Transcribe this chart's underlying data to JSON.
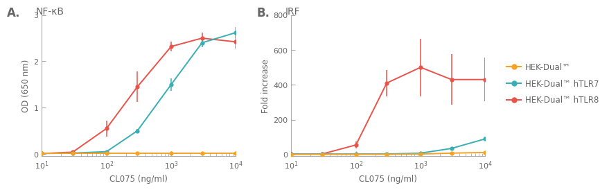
{
  "panel_A": {
    "title": "NF-κB",
    "ylabel": "OD (650 nm)",
    "xlabel": "CL075 (ng/ml)",
    "xlim": [
      10,
      10000
    ],
    "ylim": [
      -0.05,
      3.0
    ],
    "yticks": [
      0,
      1,
      2,
      3
    ],
    "series": {
      "orange": {
        "label": "HEK-Dual™",
        "color": "#F5A327",
        "x": [
          10,
          30,
          100,
          300,
          1000,
          3000,
          10000
        ],
        "y": [
          0.01,
          0.01,
          0.01,
          0.01,
          0.01,
          0.01,
          0.01
        ],
        "yerr": [
          0.005,
          0.005,
          0.005,
          0.005,
          0.005,
          0.005,
          0.005
        ]
      },
      "teal": {
        "label": "HEK-Dual™ hTLR7",
        "color": "#3AAFB3",
        "x": [
          10,
          30,
          100,
          300,
          1000,
          3000,
          10000
        ],
        "y": [
          0.01,
          0.02,
          0.05,
          0.5,
          1.5,
          2.4,
          2.62
        ],
        "yerr": [
          0.005,
          0.01,
          0.02,
          0.04,
          0.13,
          0.09,
          0.12
        ]
      },
      "red": {
        "label": "HEK-Dual™ hTLR8",
        "color": "#E8534A",
        "x": [
          10,
          30,
          100,
          300,
          1000,
          3000,
          10000
        ],
        "y": [
          0.01,
          0.04,
          0.55,
          1.45,
          2.32,
          2.5,
          2.42
        ],
        "yerr": [
          0.005,
          0.02,
          0.17,
          0.33,
          0.1,
          0.12,
          0.14
        ]
      }
    }
  },
  "panel_B": {
    "title": "IRF",
    "ylabel": "Fold increase",
    "xlabel": "CL075 (ng/ml)",
    "xlim": [
      10,
      10000
    ],
    "ylim": [
      -10,
      800
    ],
    "yticks": [
      0,
      200,
      400,
      600,
      800
    ],
    "series": {
      "orange": {
        "label": "HEK-Dual™",
        "color": "#F5A327",
        "x": [
          10,
          30,
          100,
          300,
          1000,
          3000,
          10000
        ],
        "y": [
          1,
          1,
          1,
          1,
          3,
          8,
          12
        ],
        "yerr": [
          0.5,
          0.5,
          0.5,
          0.5,
          1,
          2,
          3
        ]
      },
      "teal": {
        "label": "HEK-Dual™ hTLR7",
        "color": "#3AAFB3",
        "x": [
          10,
          30,
          100,
          300,
          1000,
          3000,
          10000
        ],
        "y": [
          3,
          3,
          3,
          3,
          8,
          35,
          90
        ],
        "yerr": [
          1,
          1,
          1,
          1,
          3,
          8,
          12
        ]
      },
      "red": {
        "label": "HEK-Dual™ hTLR8",
        "color": "#E8534A",
        "x": [
          10,
          30,
          100,
          300,
          1000,
          3000,
          10000
        ],
        "y": [
          3,
          3,
          55,
          410,
          500,
          430,
          430
        ],
        "yerr": [
          1,
          1,
          18,
          75,
          165,
          145,
          125
        ]
      }
    }
  },
  "legend_labels": [
    "HEK-Dual™",
    "HEK-Dual™ hTLR7",
    "HEK-Dual™ hTLR8"
  ],
  "legend_colors": [
    "#F5A327",
    "#3AAFB3",
    "#E8534A"
  ],
  "panel_labels": [
    "A.",
    "B."
  ],
  "background_color": "#ffffff",
  "text_color": "#666666"
}
